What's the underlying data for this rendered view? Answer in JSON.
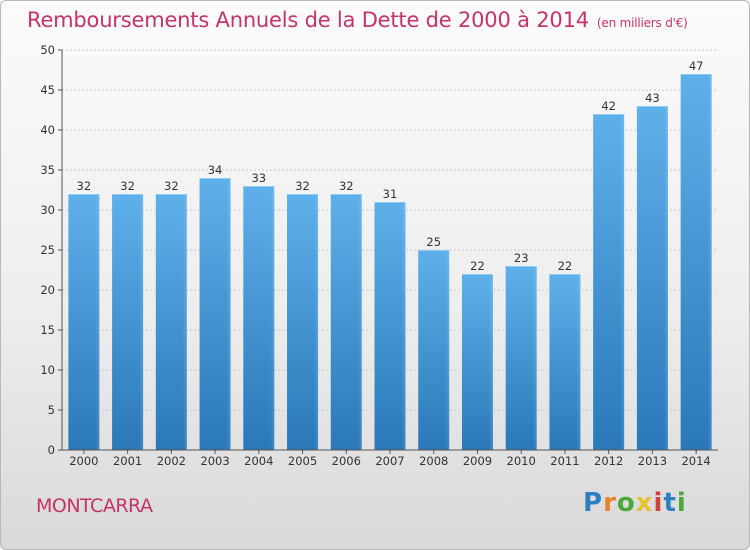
{
  "header": {
    "title": "Remboursements Annuels de la Dette de 2000 à 2014",
    "unit": "(en milliers d'€)"
  },
  "footer": {
    "city": "MONTCARRA",
    "brand": "Proxiti"
  },
  "colors": {
    "title": "#c4336b",
    "bar_light": "#5eb0ea",
    "bar_dark": "#2a78b8"
  },
  "chart_data": {
    "type": "bar",
    "title": "Remboursements Annuels de la Dette de 2000 à 2014",
    "xlabel": "",
    "ylabel": "en milliers d'€",
    "ylim": [
      0,
      50
    ],
    "yticks": [
      0,
      5,
      10,
      15,
      20,
      25,
      30,
      35,
      40,
      45,
      50
    ],
    "categories": [
      "2000",
      "2001",
      "2002",
      "2003",
      "2004",
      "2005",
      "2006",
      "2007",
      "2008",
      "2009",
      "2010",
      "2011",
      "2012",
      "2013",
      "2014"
    ],
    "values": [
      32,
      32,
      32,
      34,
      33,
      32,
      32,
      31,
      25,
      22,
      23,
      22,
      42,
      43,
      47
    ]
  }
}
